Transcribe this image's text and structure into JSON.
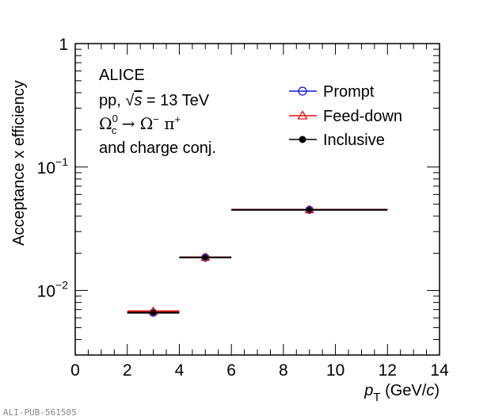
{
  "chart_data": {
    "type": "scatter",
    "title": "",
    "xlabel_var": "p",
    "xlabel_sub": "T",
    "xlabel_units_open": " (GeV/",
    "xlabel_units_c": "c",
    "xlabel_units_close": ")",
    "ylabel": "Acceptance x efficiency",
    "xlim": [
      0,
      14
    ],
    "ylim": [
      0.003,
      1
    ],
    "yscale": "log",
    "x_ticks": [
      "0",
      "2",
      "4",
      "6",
      "8",
      "10",
      "12",
      "14"
    ],
    "y_ticks": [
      {
        "value": 1,
        "label": "1"
      },
      {
        "value": 0.1,
        "label_base": "10",
        "label_exp": "−1"
      },
      {
        "value": 0.01,
        "label_base": "10",
        "label_exp": "−2"
      }
    ],
    "annotations": {
      "experiment": "ALICE",
      "system_prefix": "pp, ",
      "system_sqrt": "√",
      "system_s": "s",
      "system_suffix": " = 13 TeV",
      "decay_parent": "Ω",
      "decay_parent_sup": "0",
      "decay_parent_sub": "c",
      "decay_arrow": " → Ω",
      "decay_omega_sup": "−",
      "decay_pi": " π",
      "decay_pi_sup": "+",
      "charge_conj": "and charge conj."
    },
    "legend_position": "top-right",
    "series": [
      {
        "name": "Prompt",
        "color": "#1515d6",
        "marker": "open-circle",
        "x": [
          3,
          5,
          9
        ],
        "xerr": [
          1,
          1,
          3
        ],
        "y": [
          0.0066,
          0.0185,
          0.045
        ]
      },
      {
        "name": "Feed-down",
        "color": "#e01010",
        "marker": "open-triangle",
        "x": [
          3,
          5,
          9
        ],
        "xerr": [
          1,
          1,
          3
        ],
        "y": [
          0.0068,
          0.0186,
          0.0452
        ]
      },
      {
        "name": "Inclusive",
        "color": "#000000",
        "marker": "filled-circle",
        "x": [
          3,
          5,
          9
        ],
        "xerr": [
          1,
          1,
          3
        ],
        "y": [
          0.0066,
          0.0185,
          0.045
        ]
      }
    ]
  },
  "footer": "ALI-PUB-561505"
}
